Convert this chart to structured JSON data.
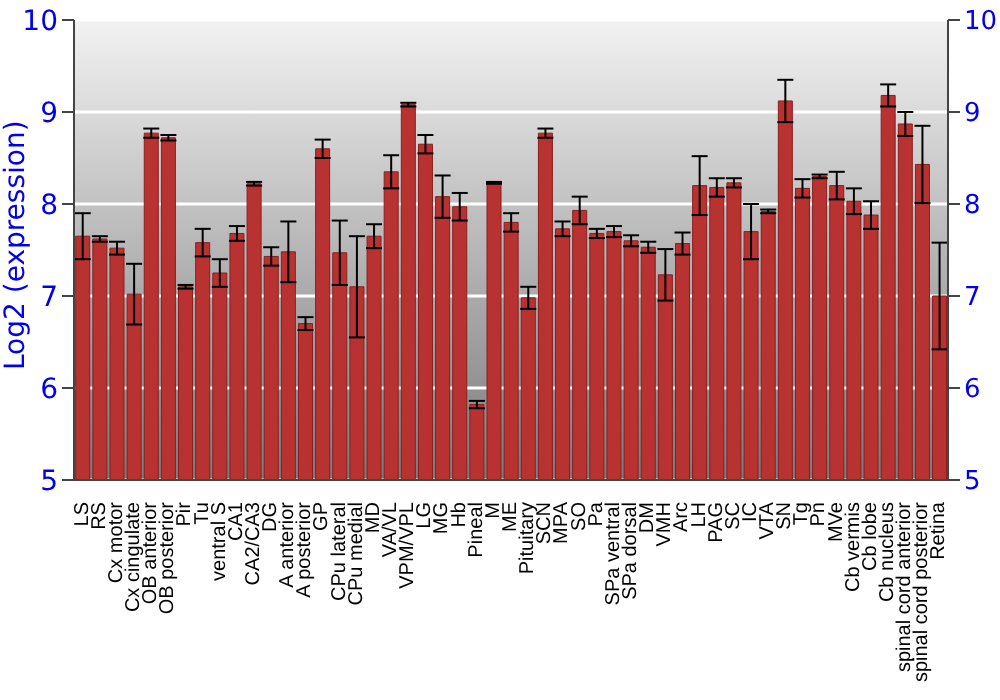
{
  "chart_data": {
    "type": "bar",
    "ylabel": "Log2 (expression)",
    "categories": [
      "LS",
      "RS",
      "Cx motor",
      "Cx cingulate",
      "OB anterior",
      "OB posterior",
      "Pir",
      "Tu",
      "ventral S",
      "CA1",
      "CA2/CA3",
      "DG",
      "A anterior",
      "A posterior",
      "GP",
      "CPu lateral",
      "CPu medial",
      "MD",
      "VA/VL",
      "VPM/VPL",
      "LG",
      "MG",
      "Hb",
      "Pineal",
      "M",
      "ME",
      "Pituitary",
      "SCN",
      "MPA",
      "SO",
      "Pa",
      "SPa ventral",
      "SPa dorsal",
      "DM",
      "VMH",
      "Arc",
      "LH",
      "PAG",
      "SC",
      "IC",
      "VTA",
      "SN",
      "Tg",
      "Pn",
      "MVe",
      "Cb vermis",
      "Cb lobe",
      "Cb nucleus",
      "spinal cord anterior",
      "spinal cord posterior",
      "Retina"
    ],
    "values": [
      7.65,
      7.62,
      7.52,
      7.02,
      8.77,
      8.72,
      7.1,
      7.58,
      7.25,
      7.68,
      8.22,
      7.43,
      7.48,
      6.7,
      8.6,
      7.47,
      7.1,
      7.65,
      8.35,
      9.08,
      8.65,
      8.08,
      7.97,
      5.82,
      8.23,
      7.8,
      6.98,
      8.77,
      7.73,
      7.93,
      7.68,
      7.7,
      7.6,
      7.53,
      7.23,
      7.57,
      8.2,
      8.18,
      8.23,
      7.7,
      7.92,
      9.12,
      8.17,
      8.3,
      8.2,
      8.03,
      7.88,
      9.18,
      8.87,
      8.43,
      7.0
    ],
    "errors": [
      0.25,
      0.03,
      0.07,
      0.33,
      0.05,
      0.03,
      0.02,
      0.15,
      0.15,
      0.08,
      0.02,
      0.1,
      0.33,
      0.07,
      0.1,
      0.35,
      0.55,
      0.13,
      0.18,
      0.02,
      0.1,
      0.23,
      0.15,
      0.04,
      0.01,
      0.1,
      0.12,
      0.05,
      0.08,
      0.15,
      0.05,
      0.06,
      0.06,
      0.06,
      0.28,
      0.12,
      0.32,
      0.1,
      0.05,
      0.3,
      0.02,
      0.23,
      0.1,
      0.02,
      0.15,
      0.14,
      0.15,
      0.12,
      0.13,
      0.42,
      0.58
    ],
    "color": "#b83232",
    "ylim": [
      5,
      10
    ],
    "yticks": [
      5,
      6,
      7,
      8,
      9,
      10
    ],
    "y2lim": [
      5,
      10
    ],
    "y2ticks": [
      5,
      6,
      7,
      8,
      9,
      10
    ],
    "grid": "y"
  }
}
